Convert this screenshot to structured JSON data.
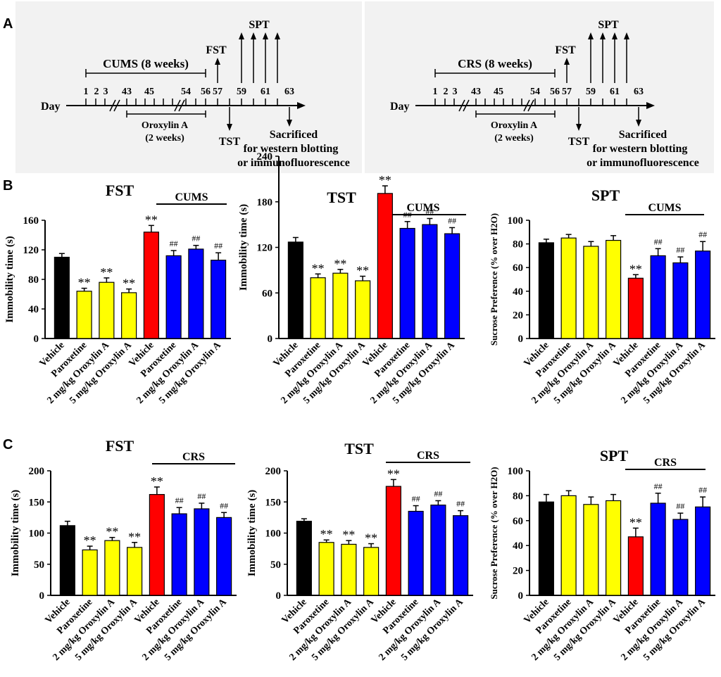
{
  "panel_labels": [
    "A",
    "B",
    "C"
  ],
  "timelines": [
    {
      "day_label": "Day",
      "stress_label": "CUMS (8 weeks)",
      "fst": "FST",
      "spt": "SPT",
      "tst": "TST",
      "drug_line1": "Oroxylin A",
      "drug_line2": "(2 weeks)",
      "sac1": "Sacrificed",
      "sac2": "for western blotting",
      "sac3": "or immunofluorescence",
      "days": [
        "1",
        "2",
        "3",
        "43",
        "45",
        "54",
        "56",
        "57",
        "59",
        "61",
        "63"
      ]
    },
    {
      "day_label": "Day",
      "stress_label": "CRS (8 weeks)",
      "fst": "FST",
      "spt": "SPT",
      "tst": "TST",
      "drug_line1": "Oroxylin A",
      "drug_line2": "(2 weeks)",
      "sac1": "Sacrificed",
      "sac2": "for western blotting",
      "sac3": "or immunofluorescence",
      "days": [
        "1",
        "2",
        "3",
        "43",
        "45",
        "54",
        "56",
        "57",
        "59",
        "61",
        "63"
      ]
    }
  ],
  "colors": {
    "black": "#000000",
    "yellow": "#ffff00",
    "red": "#ff0000",
    "blue": "#0000ff"
  },
  "chart_data": [
    {
      "id": "B-FST",
      "type": "bar",
      "title": "FST",
      "group_label": "CUMS",
      "ylabel": "Immobility time (s)",
      "ylim": [
        0,
        160
      ],
      "ticks": [
        0,
        40,
        80,
        120,
        160
      ],
      "categories": [
        "Vehicle",
        "Paroxetine",
        "2 mg/kg Oroxylin A",
        "5 mg/kg Oroxylin A",
        "Vehicle",
        "Paroxetine",
        "2 mg/kg Oroxylin A",
        "5 mg/kg Oroxylin A"
      ],
      "values": [
        110,
        64,
        76,
        62,
        144,
        112,
        121,
        106
      ],
      "errors": [
        5,
        4,
        6,
        5,
        9,
        7,
        5,
        10
      ],
      "colors": [
        "black",
        "yellow",
        "yellow",
        "yellow",
        "red",
        "blue",
        "blue",
        "blue"
      ],
      "annotations": [
        "",
        "**",
        "**",
        "**",
        "**",
        "##",
        "##",
        "##"
      ]
    },
    {
      "id": "B-TST",
      "type": "bar",
      "title": "TST",
      "group_label": "CUMS",
      "ylabel": "Immobility time (s)",
      "ylim": [
        0,
        240
      ],
      "ticks": [
        0,
        60,
        120,
        180,
        240
      ],
      "categories": [
        "Vehicle",
        "Paroxetine",
        "2 mg/kg Oroxylin A",
        "5 mg/kg Oroxylin A",
        "Vehicle",
        "Paroxetine",
        "2 mg/kg Oroxylin A",
        "5 mg/kg Oroxylin A"
      ],
      "values": [
        127,
        80,
        86,
        76,
        191,
        145,
        150,
        138
      ],
      "errors": [
        6,
        5,
        5,
        6,
        10,
        9,
        8,
        8
      ],
      "colors": [
        "black",
        "yellow",
        "yellow",
        "yellow",
        "red",
        "blue",
        "blue",
        "blue"
      ],
      "annotations": [
        "",
        "**",
        "**",
        "**",
        "**",
        "##",
        "##",
        "##"
      ]
    },
    {
      "id": "B-SPT",
      "type": "bar",
      "title": "SPT",
      "group_label": "CUMS",
      "ylabel": "Sucrose Preference (% over H2O)",
      "ylim": [
        0,
        100
      ],
      "ticks": [
        0,
        20,
        40,
        60,
        80,
        100
      ],
      "categories": [
        "Vehicle",
        "Paroxetine",
        "2 mg/kg Oroxylin A",
        "5 mg/kg Oroxylin A",
        "Vehicle",
        "Paroxetine",
        "2 mg/kg Oroxylin A",
        "5 mg/kg Oroxylin A"
      ],
      "values": [
        81,
        85,
        78,
        83,
        51,
        70,
        64,
        74
      ],
      "errors": [
        3,
        3,
        4,
        4,
        3,
        6,
        5,
        8
      ],
      "colors": [
        "black",
        "yellow",
        "yellow",
        "yellow",
        "red",
        "blue",
        "blue",
        "blue"
      ],
      "annotations": [
        "",
        "",
        "",
        "",
        "**",
        "##",
        "##",
        "##"
      ]
    },
    {
      "id": "C-FST",
      "type": "bar",
      "title": "FST",
      "group_label": "CRS",
      "ylabel": "Immobility time (s)",
      "ylim": [
        0,
        200
      ],
      "ticks": [
        0,
        50,
        100,
        150,
        200
      ],
      "categories": [
        "Vehicle",
        "Paroxetine",
        "2 mg/kg Oroxylin A",
        "5 mg/kg Oroxylin A",
        "Vehicle",
        "Paroxetine",
        "2 mg/kg Oroxylin A",
        "5 mg/kg Oroxylin A"
      ],
      "values": [
        112,
        73,
        88,
        77,
        162,
        131,
        139,
        125
      ],
      "errors": [
        7,
        6,
        5,
        8,
        12,
        10,
        9,
        8
      ],
      "colors": [
        "black",
        "yellow",
        "yellow",
        "yellow",
        "red",
        "blue",
        "blue",
        "blue"
      ],
      "annotations": [
        "",
        "**",
        "**",
        "**",
        "**",
        "##",
        "##",
        "##"
      ]
    },
    {
      "id": "C-TST",
      "type": "bar",
      "title": "TST",
      "group_label": "CRS",
      "ylabel": "Immobility time (s)",
      "ylim": [
        0,
        200
      ],
      "ticks": [
        0,
        50,
        100,
        150,
        200
      ],
      "categories": [
        "Vehicle",
        "Paroxetine",
        "2 mg/kg Oroxylin A",
        "5 mg/kg Oroxylin A",
        "Vehicle",
        "Paroxetine",
        "2 mg/kg Oroxylin A",
        "5 mg/kg Oroxylin A"
      ],
      "values": [
        119,
        85,
        82,
        77,
        175,
        135,
        145,
        128
      ],
      "errors": [
        4,
        4,
        6,
        6,
        11,
        9,
        7,
        8
      ],
      "colors": [
        "black",
        "yellow",
        "yellow",
        "yellow",
        "red",
        "blue",
        "blue",
        "blue"
      ],
      "annotations": [
        "",
        "**",
        "**",
        "**",
        "**",
        "##",
        "##",
        "##"
      ]
    },
    {
      "id": "C-SPT",
      "type": "bar",
      "title": "SPT",
      "group_label": "CRS",
      "ylabel": "Sucrose Preference (% over H2O)",
      "ylim": [
        0,
        100
      ],
      "ticks": [
        0,
        20,
        40,
        60,
        80,
        100
      ],
      "categories": [
        "Vehicle",
        "Paroxetine",
        "2 mg/kg Oroxylin A",
        "5 mg/kg Oroxylin A",
        "Vehicle",
        "Paroxetine",
        "2 mg/kg Oroxylin A",
        "5 mg/kg Oroxylin A"
      ],
      "values": [
        75,
        80,
        73,
        76,
        47,
        74,
        61,
        71
      ],
      "errors": [
        6,
        4,
        6,
        5,
        7,
        8,
        5,
        8
      ],
      "colors": [
        "black",
        "yellow",
        "yellow",
        "yellow",
        "red",
        "blue",
        "blue",
        "blue"
      ],
      "annotations": [
        "",
        "",
        "",
        "",
        "**",
        "##",
        "##",
        "##"
      ]
    }
  ]
}
